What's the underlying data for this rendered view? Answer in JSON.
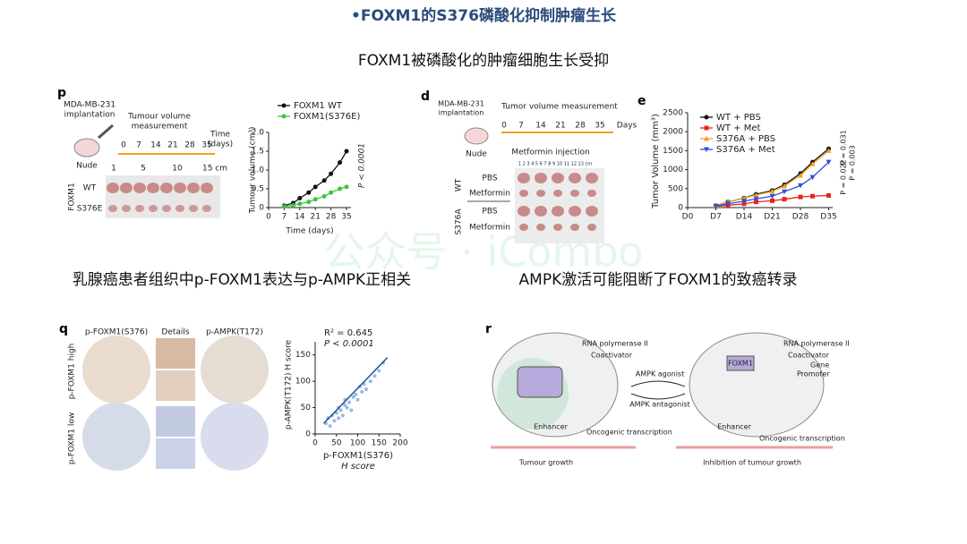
{
  "header": {
    "title": "•FOXM1的S376磷酸化抑制肿瘤生长"
  },
  "captions": [
    "FOXM1被磷酸化的肿瘤细胞生长受抑",
    "乳腺癌患者组织中p-FOXM1表达与p-AMPK正相关",
    "AMPK激活可能阻断了FOXM1的致癌转录"
  ],
  "watermark": "公众号 · iCombo",
  "panel_p": {
    "label": "p",
    "schematic": {
      "cell_line": [
        "MDA-MB-231",
        "implantation"
      ],
      "measurement": [
        "Tumour volume",
        "measurement"
      ],
      "time_axis": [
        "0",
        "7",
        "14",
        "21",
        "28",
        "35"
      ],
      "time_label": [
        "Time",
        "(days)"
      ],
      "mouse": "Nude",
      "ruler": [
        "1",
        "5",
        "10",
        "15 cm"
      ],
      "group_label": "FOXM1",
      "rows": [
        "WT",
        "S376E"
      ]
    },
    "chart_data": {
      "type": "line",
      "xlabel": "Time (days)",
      "ylabel": "Tumour volume (cm³)",
      "legend": "top-left",
      "annotation": "P < 0.0001",
      "x": [
        7,
        11,
        14,
        18,
        21,
        25,
        28,
        32,
        35
      ],
      "xlim": [
        0,
        37
      ],
      "xticks": [
        0,
        7,
        14,
        21,
        28,
        35
      ],
      "ylim": [
        0,
        2
      ],
      "yticks": [
        0,
        0.5,
        {
          "value": 1,
          "label": "1.0"
        },
        1.5,
        {
          "value": 2,
          "label": "2.0"
        }
      ],
      "series": [
        {
          "name": "FOXM1 WT",
          "color": "#111111",
          "marker": "circle",
          "values": [
            0.05,
            0.12,
            0.25,
            0.4,
            0.55,
            0.72,
            0.9,
            1.2,
            1.5
          ]
        },
        {
          "name": "FOXM1(S376E)",
          "color": "#3ec43e",
          "marker": "circle",
          "values": [
            0.03,
            0.06,
            0.1,
            0.15,
            0.22,
            0.3,
            0.4,
            0.5,
            0.55
          ]
        }
      ]
    }
  },
  "panel_d": {
    "label": "d",
    "cell_line": [
      "MDA-MB-231",
      "implantation"
    ],
    "measurement": "Tumor volume measurement",
    "time_axis": [
      "0",
      "7",
      "14",
      "21",
      "28",
      "35"
    ],
    "days": "Days",
    "injection": "Metformin injection",
    "mouse": "Nude",
    "ruler": "1 2 3 4 5 6 7 8 9 10 11 12 13 cm",
    "groups": [
      {
        "name": "WT",
        "rows": [
          "PBS",
          "Metformin"
        ]
      },
      {
        "name": "S376A",
        "rows": [
          "PBS",
          "Metformin"
        ]
      }
    ]
  },
  "panel_e": {
    "label": "e",
    "chart_data": {
      "type": "line",
      "ylabel": "Tumor Volume (mm³)",
      "legend": "top-left",
      "annotations": [
        "P = 0.031",
        "P = 0.022",
        "P = 0.003"
      ],
      "x": [
        7,
        10,
        14,
        17,
        21,
        24,
        28,
        31,
        35
      ],
      "xlim": [
        0,
        36
      ],
      "xticks": [
        {
          "value": 0,
          "label": "D0"
        },
        {
          "value": 7,
          "label": "D7"
        },
        {
          "value": 14,
          "label": "D14"
        },
        {
          "value": 21,
          "label": "D21"
        },
        {
          "value": 28,
          "label": "D28"
        },
        {
          "value": 35,
          "label": "D35"
        }
      ],
      "ylim": [
        0,
        2500
      ],
      "yticks": [
        0,
        500,
        1000,
        1500,
        2000,
        2500
      ],
      "series": [
        {
          "name": "WT + PBS",
          "color": "#111111",
          "marker": "circle",
          "values": [
            50,
            150,
            250,
            350,
            450,
            600,
            900,
            1200,
            1550
          ]
        },
        {
          "name": "WT + Met",
          "color": "#e8231f",
          "marker": "square",
          "values": [
            30,
            60,
            100,
            150,
            180,
            220,
            280,
            300,
            320
          ]
        },
        {
          "name": "S376A + PBS",
          "color": "#f0a020",
          "marker": "triangle",
          "values": [
            50,
            150,
            250,
            330,
            430,
            570,
            850,
            1150,
            1500
          ]
        },
        {
          "name": "S376A + Met",
          "color": "#2d4fe0",
          "marker": "triangle-down",
          "values": [
            40,
            100,
            170,
            230,
            300,
            420,
            580,
            800,
            1200
          ]
        }
      ]
    }
  },
  "panel_q": {
    "label": "q",
    "columns": [
      "p-FOXM1(S376)",
      "Details",
      "p-AMPK(T172)"
    ],
    "rows": [
      "p-FOXM1 high",
      "p-FOXM1 low"
    ],
    "chart_data": {
      "type": "scatter",
      "r2": "R² = 0.645",
      "p": "P < 0.0001",
      "xlabel": [
        "p-FOXM1(S376)",
        "H score"
      ],
      "ylabel": "p-AMPK(T172) H score",
      "color": "#7fa9d9",
      "x": [
        25,
        30,
        35,
        40,
        45,
        50,
        55,
        55,
        60,
        65,
        70,
        70,
        75,
        80,
        85,
        90,
        95,
        100,
        105,
        110,
        115,
        120,
        130,
        140,
        150,
        160
      ],
      "y": [
        20,
        30,
        15,
        35,
        25,
        40,
        30,
        50,
        45,
        35,
        55,
        65,
        50,
        60,
        45,
        70,
        75,
        65,
        90,
        80,
        95,
        85,
        100,
        110,
        120,
        135
      ],
      "fit_line": {
        "x": [
          20,
          170
        ],
        "y": [
          20,
          145
        ]
      },
      "xlim": [
        0,
        200
      ],
      "xticks": [
        0,
        50,
        100,
        150,
        200
      ],
      "ylim": [
        0,
        175
      ],
      "yticks": [
        0,
        50,
        100,
        150
      ]
    }
  },
  "panel_r": {
    "label": "r",
    "texts": [
      "RNA polymerase II",
      "Coactivator",
      "Enhancer",
      "Oncogenic transcription",
      "Tumour growth",
      "AMPK agonist",
      "AMPK antagonist",
      "RNA polymerase II",
      "Coactivator",
      "Enhancer",
      "Oncogenic transcription",
      "Inhibition of tumour growth",
      "FOXM1",
      "Promoter",
      "Gene"
    ]
  }
}
